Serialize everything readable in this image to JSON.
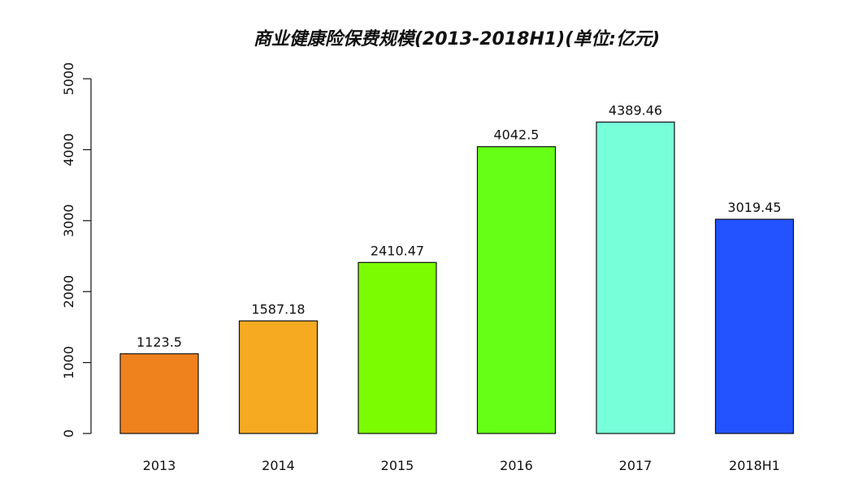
{
  "chart_data": {
    "type": "bar",
    "title": "商业健康险保费规模(2013-2018H1)(单位:亿元)",
    "xlabel": "",
    "ylabel": "",
    "categories": [
      "2013",
      "2014",
      "2015",
      "2016",
      "2017",
      "2018H1"
    ],
    "values": [
      1123.5,
      1587.18,
      2410.47,
      4042.5,
      4389.46,
      3019.45
    ],
    "data_labels": [
      "1123.5",
      "1587.18",
      "2410.47",
      "4042.5",
      "4389.46",
      "3019.45"
    ],
    "colors": [
      "#F0821E",
      "#F5AA22",
      "#7CFC00",
      "#66FF16",
      "#76FFD8",
      "#2352FF"
    ],
    "ylim": [
      0,
      5000
    ],
    "yticks": [
      0,
      1000,
      2000,
      3000,
      4000,
      5000
    ],
    "ytick_labels": [
      "0",
      "1000",
      "2000",
      "3000",
      "4000",
      "5000"
    ],
    "grid": false,
    "legend": "none"
  }
}
